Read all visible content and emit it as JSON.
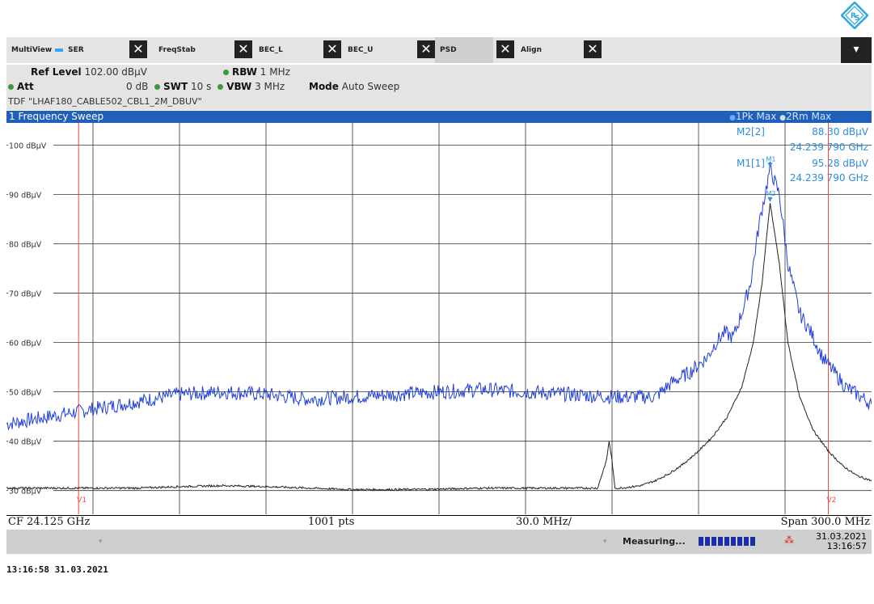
{
  "tabs": [
    {
      "label": "MultiView",
      "active": false
    },
    {
      "label": "SER",
      "active": false
    },
    {
      "label": "FreqStab",
      "active": false
    },
    {
      "label": "BEC_L",
      "active": false
    },
    {
      "label": "BEC_U",
      "active": false
    },
    {
      "label": "PSD",
      "active": true
    },
    {
      "label": "Align",
      "active": false
    }
  ],
  "menu_icon": "menu-dropdown-icon",
  "settings": {
    "ref_level_label": "Ref Level",
    "ref_level_value": "102.00 dBµV",
    "att_label": "Att",
    "att_value": "0 dB",
    "swt_label": "SWT",
    "swt_value": "10 s",
    "rbw_label": "RBW",
    "rbw_value": "1 MHz",
    "vbw_label": "VBW",
    "vbw_value": "3 MHz",
    "mode_label": "Mode",
    "mode_value": "Auto Sweep",
    "tdf": "TDF \"LHAF180_CABLE502_CBL1_2M_DBUV\""
  },
  "diagram": {
    "title": "1 Frequency Sweep",
    "trace1_label": "1Pk Max",
    "trace2_label": "2Rm Max"
  },
  "markers": {
    "m2_label": "M2[2]",
    "m2_level": "88.30 dBµV",
    "m2_freq": "24.239 790 GHz",
    "m1_label": "M1[1]",
    "m1_level": "95.28 dBµV",
    "m1_freq": "24.239 790 GHz",
    "m1_tag": "M1",
    "m2_tag": "M2"
  },
  "vlines": {
    "v1": "V1",
    "v2": "V2"
  },
  "footer": {
    "cf": "CF 24.125 GHz",
    "points": "1001 pts",
    "per_div": "30.0 MHz/",
    "span": "Span 300.0 MHz"
  },
  "status": {
    "measuring": "Measuring...",
    "date": "31.03.2021",
    "time": "13:16:57"
  },
  "bottom_timestamp": "13:16:58  31.03.2021",
  "colors": {
    "trace1": "#1f3fd8",
    "trace2": "#222222",
    "marker_text": "#2e8be0",
    "vline": "#ff4444",
    "title_bar": "#2060b8"
  },
  "chart_data": {
    "type": "line",
    "title": "1 Frequency Sweep",
    "xlabel": "",
    "ylabel": "",
    "x_center_GHz": 24.125,
    "x_span_MHz": 300.0,
    "xlim_GHz": [
      23.975,
      24.275
    ],
    "ylim": [
      25.2,
      104.5
    ],
    "y_ticks": [
      {
        "value": 100,
        "label": "100 dBµV"
      },
      {
        "value": 90,
        "label": "90 dBµV"
      },
      {
        "value": 80,
        "label": "80 dBµV"
      },
      {
        "value": 70,
        "label": "70 dBµV"
      },
      {
        "value": 60,
        "label": "60 dBµV"
      },
      {
        "value": 50,
        "label": "50 dBµV"
      },
      {
        "value": 40,
        "label": "40 dBµV"
      },
      {
        "value": 30,
        "label": "30 dBµV"
      }
    ],
    "v_lines_GHz": [
      24.0,
      24.26
    ],
    "series": [
      {
        "name": "1Pk Max",
        "x": [
          23.975,
          23.99,
          24.005,
          24.02,
          24.035,
          24.05,
          24.065,
          24.08,
          24.095,
          24.11,
          24.125,
          24.14,
          24.155,
          24.17,
          24.185,
          24.2,
          24.206,
          24.212,
          24.218,
          24.221,
          24.224,
          24.227,
          24.23,
          24.233,
          24.236,
          24.2398,
          24.243,
          24.246,
          24.25,
          24.254,
          24.258,
          24.262,
          24.266,
          24.27,
          24.275
        ],
        "y": [
          43.5,
          45.0,
          46.5,
          48.0,
          49.5,
          50.0,
          49.5,
          48.5,
          49.0,
          49.5,
          50.0,
          50.5,
          50.0,
          49.5,
          49.0,
          49.0,
          52.0,
          54.0,
          57.0,
          60.0,
          62.0,
          61.0,
          66.0,
          72.0,
          84.0,
          95.28,
          90.0,
          76.0,
          66.0,
          62.0,
          57.0,
          54.0,
          51.0,
          49.5,
          47.5
        ]
      },
      {
        "name": "2Rm Max",
        "x": [
          23.975,
          23.99,
          24.005,
          24.02,
          24.035,
          24.05,
          24.065,
          24.08,
          24.095,
          24.11,
          24.125,
          24.14,
          24.155,
          24.17,
          24.18,
          24.183,
          24.184,
          24.185,
          24.186,
          24.188,
          24.195,
          24.2,
          24.205,
          24.21,
          24.215,
          24.22,
          24.225,
          24.23,
          24.234,
          24.237,
          24.2398,
          24.243,
          24.246,
          24.25,
          24.255,
          24.26,
          24.265,
          24.27,
          24.275
        ],
        "y": [
          30.5,
          30.5,
          30.5,
          30.5,
          30.8,
          31.0,
          30.8,
          30.5,
          30.2,
          30.2,
          30.3,
          30.5,
          30.5,
          30.5,
          30.5,
          36.0,
          40.0,
          36.0,
          30.5,
          30.5,
          31.0,
          32.0,
          33.5,
          35.5,
          38.0,
          41.0,
          45.0,
          51.0,
          60.0,
          72.0,
          88.3,
          76.0,
          60.0,
          49.0,
          42.0,
          38.0,
          35.0,
          33.0,
          32.0
        ]
      }
    ]
  }
}
